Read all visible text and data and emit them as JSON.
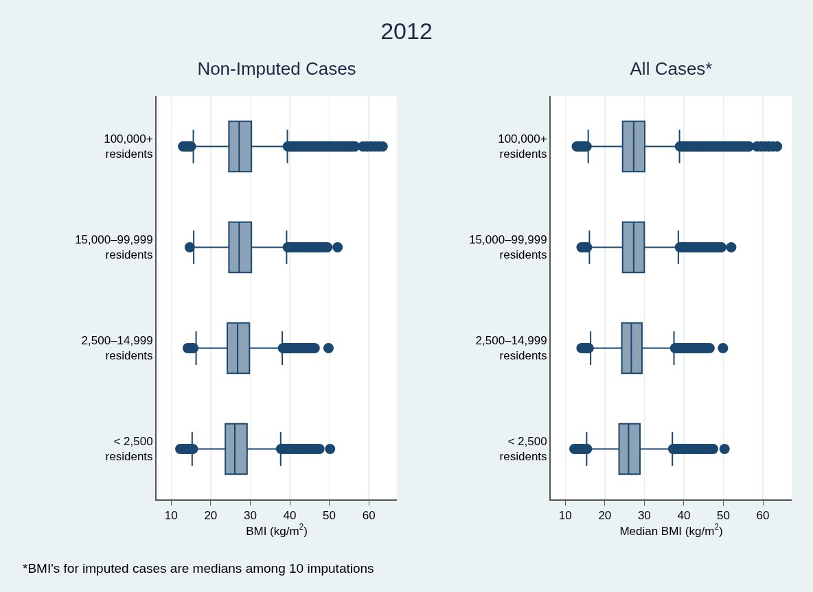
{
  "chart_data": [
    {
      "type": "box",
      "orientation": "horizontal",
      "title": "Non-Imputed Cases",
      "xlabel": "BMI (kg/m$^{2}$)",
      "annotations": [
        "2012"
      ],
      "categories": [
        "100,000+ residents",
        "15,000–99,999 residents",
        "2,500–14,999 residents",
        "< 2,500 residents"
      ],
      "color": "#1a476f",
      "marker": "circle",
      "grid": "x",
      "xlim": [
        6.3,
        67.1
      ],
      "xticks": [
        10,
        20,
        30,
        40,
        50,
        60
      ],
      "boxes": [
        {
          "low": 15.6,
          "q1": 24.6,
          "median": 27.2,
          "q3": 30.3,
          "high": 39.4,
          "outliers": [
            13,
            13.5,
            14,
            14.5,
            15,
            39.5,
            40,
            40.5,
            41,
            41.5,
            42,
            42.5,
            43,
            43.5,
            44,
            44.5,
            45,
            45.5,
            46,
            46.5,
            47,
            47.5,
            48,
            48.5,
            49,
            49.5,
            50,
            50.5,
            51,
            51.5,
            52,
            52.5,
            53,
            53.5,
            54,
            54.5,
            55,
            55.5,
            56,
            56.5,
            58.5,
            59.5,
            60.5,
            61.5,
            62.5,
            63.5
          ]
        },
        {
          "low": 15.7,
          "q1": 24.6,
          "median": 27.2,
          "q3": 30.3,
          "high": 39.2,
          "outliers": [
            14.7,
            39.5,
            40,
            40.5,
            41,
            41.5,
            42,
            42.5,
            43,
            43.5,
            44,
            44.5,
            45,
            45.5,
            46,
            46.5,
            47,
            47.5,
            48,
            48.5,
            49,
            49.5,
            52.1
          ]
        },
        {
          "low": 16.3,
          "q1": 24.2,
          "median": 26.8,
          "q3": 29.8,
          "high": 38.1,
          "outliers": [
            14.2,
            14.7,
            15.2,
            15.6,
            38.3,
            38.8,
            39.3,
            39.8,
            40.3,
            40.8,
            41.3,
            41.8,
            42.3,
            42.8,
            43.3,
            43.8,
            44.3,
            44.8,
            45.3,
            45.8,
            46.3,
            49.8
          ]
        },
        {
          "low": 15.3,
          "q1": 23.7,
          "median": 26.1,
          "q3": 29.2,
          "high": 37.7,
          "outliers": [
            12.3,
            12.8,
            13.3,
            13.8,
            14.3,
            14.8,
            15.5,
            37.8,
            38.3,
            38.8,
            39.3,
            39.8,
            40.3,
            40.8,
            41.3,
            41.8,
            42.3,
            42.8,
            43.3,
            43.8,
            44.3,
            44.8,
            45.3,
            45.8,
            46.3,
            46.8,
            47.5,
            50.2
          ]
        }
      ]
    },
    {
      "type": "box",
      "orientation": "horizontal",
      "title": "All Cases*",
      "xlabel": "Median BMI (kg/m$^{2}$)",
      "annotations": [
        "*BMI's for imputed cases are medians among 10 imputations"
      ],
      "categories": [
        "100,000+ residents",
        "15,000–99,999 residents",
        "2,500–14,999 residents",
        "< 2,500 residents"
      ],
      "color": "#1a476f",
      "marker": "circle",
      "grid": "x",
      "xlim": [
        6.3,
        67.3
      ],
      "xticks": [
        10,
        20,
        30,
        40,
        50,
        60
      ],
      "boxes": [
        {
          "low": 15.8,
          "q1": 24.5,
          "median": 27.3,
          "q3": 30.1,
          "high": 38.9,
          "outliers": [
            12.9,
            13.4,
            13.9,
            14.4,
            14.9,
            15.4,
            39,
            39.5,
            40,
            40.5,
            41,
            41.5,
            42,
            42.5,
            43,
            43.5,
            44,
            44.5,
            45,
            45.5,
            46,
            46.5,
            47,
            47.5,
            48,
            48.5,
            49,
            49.5,
            50,
            50.5,
            51,
            51.5,
            52,
            52.5,
            53,
            53.5,
            54,
            54.5,
            55,
            55.5,
            56,
            56.5,
            58.5,
            59.5,
            60.5,
            61.5,
            62.5,
            63.6
          ]
        },
        {
          "low": 16.1,
          "q1": 24.5,
          "median": 27.3,
          "q3": 30.0,
          "high": 38.6,
          "outliers": [
            14.1,
            14.6,
            15.1,
            15.5,
            39,
            39.5,
            40,
            40.5,
            41,
            41.5,
            42,
            42.5,
            43,
            43.5,
            44,
            44.5,
            45,
            45.5,
            46,
            46.5,
            47,
            47.5,
            48,
            48.5,
            49,
            49.5,
            52.0
          ]
        },
        {
          "low": 16.4,
          "q1": 24.3,
          "median": 26.7,
          "q3": 29.4,
          "high": 37.5,
          "outliers": [
            14.1,
            14.6,
            15.1,
            15.6,
            15.9,
            37.8,
            38.3,
            38.8,
            39.3,
            39.8,
            40.3,
            40.8,
            41.3,
            41.8,
            42.3,
            42.8,
            43.3,
            43.8,
            44.3,
            44.8,
            45.3,
            45.8,
            46.5,
            49.9
          ]
        },
        {
          "low": 15.4,
          "q1": 23.6,
          "median": 26.0,
          "q3": 28.9,
          "high": 37.1,
          "outliers": [
            12.3,
            12.8,
            13.3,
            13.8,
            14.3,
            14.8,
            15.5,
            37.3,
            37.8,
            38.3,
            38.8,
            39.3,
            39.8,
            40.3,
            40.8,
            41.3,
            41.8,
            42.3,
            42.8,
            43.3,
            43.8,
            44.3,
            44.8,
            45.3,
            45.8,
            46.3,
            46.8,
            47.4,
            50.3
          ]
        }
      ]
    }
  ]
}
